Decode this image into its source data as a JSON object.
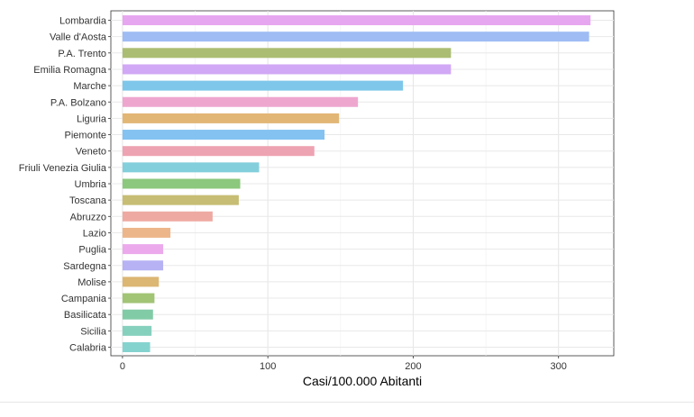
{
  "chart_data": {
    "type": "bar",
    "orientation": "horizontal",
    "title": "",
    "xlabel": "Casi/100.000 Abitanti",
    "ylabel": "",
    "xlim": [
      -8,
      338
    ],
    "x_ticks": [
      0,
      100,
      200,
      300
    ],
    "grid": true,
    "legend": "none",
    "categories": [
      "Lombardia",
      "Valle d'Aosta",
      "P.A. Trento",
      "Emilia Romagna",
      "Marche",
      "P.A. Bolzano",
      "Liguria",
      "Piemonte",
      "Veneto",
      "Friuli Venezia Giulia",
      "Umbria",
      "Toscana",
      "Abruzzo",
      "Lazio",
      "Puglia",
      "Sardegna",
      "Molise",
      "Campania",
      "Basilicata",
      "Sicilia",
      "Calabria"
    ],
    "values": [
      322,
      321,
      226,
      226,
      193,
      162,
      149,
      139,
      132,
      94,
      81,
      80,
      62,
      33,
      28,
      28,
      25,
      22,
      21,
      20,
      19
    ],
    "colors": [
      "#e7a6f0",
      "#9fbcf4",
      "#abbd72",
      "#d1a8f5",
      "#7ec7ea",
      "#eea6cf",
      "#e2b675",
      "#84c2f2",
      "#eea3b2",
      "#84cfdc",
      "#8cc87d",
      "#c7bd74",
      "#eeaaa2",
      "#edb68a",
      "#ecaaec",
      "#b6b2f4",
      "#dcb673",
      "#a1c475",
      "#82cba7",
      "#86d0be",
      "#85d3cf"
    ]
  }
}
